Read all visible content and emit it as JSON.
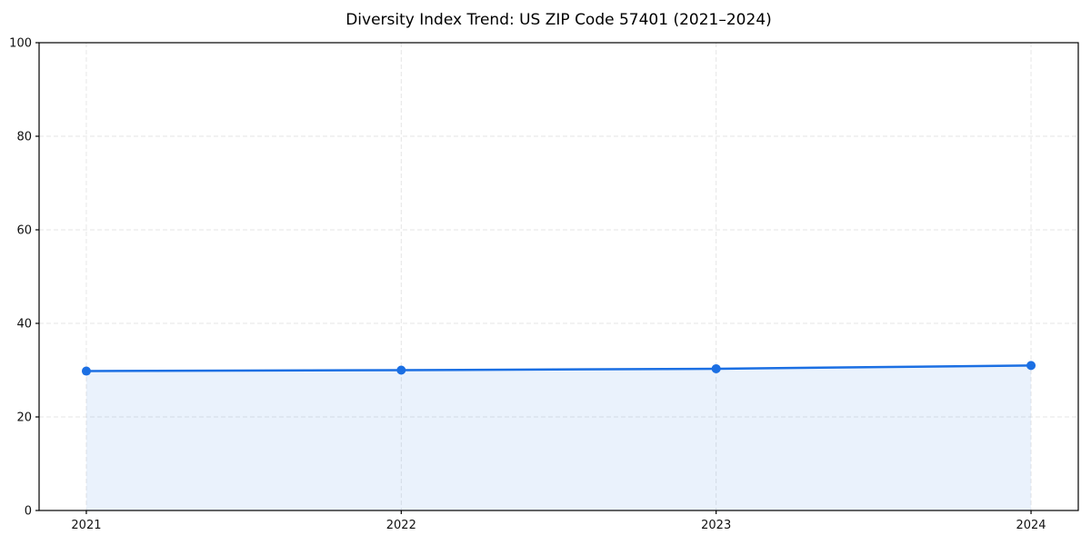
{
  "chart_data": {
    "type": "area",
    "title": "Diversity Index Trend: US ZIP Code 57401 (2021–2024)",
    "x": [
      2021,
      2022,
      2023,
      2024
    ],
    "series": [
      {
        "name": "Diversity Index",
        "values": [
          29.8,
          30.0,
          30.3,
          31.0
        ]
      }
    ],
    "xlabel": "",
    "ylabel": "",
    "ylim": [
      0,
      100
    ],
    "yticks": [
      0,
      20,
      40,
      60,
      80,
      100
    ],
    "xtick_labels": [
      "2021",
      "2022",
      "2023",
      "2024"
    ],
    "grid": true,
    "grid_style": "dashed",
    "legend_position": "none",
    "style": {
      "line_color": "#1b6fe3",
      "marker_color": "#1b6fe3",
      "fill_color": "#1b6fe3",
      "fill_opacity": 0.09,
      "grid_color": "#e6e6e6",
      "spine_color": "#000000",
      "text_color": "#111111",
      "background": "#ffffff"
    }
  }
}
